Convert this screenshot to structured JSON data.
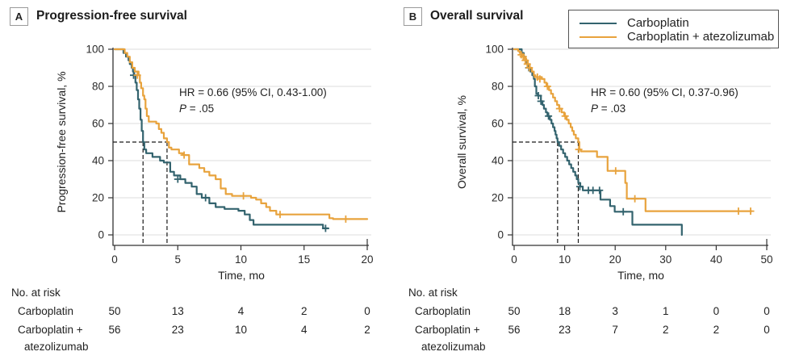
{
  "colors": {
    "carboplatin": "#33636E",
    "atezolizumab": "#E8A33D",
    "grid": "#DCDCDC",
    "axis": "#333333",
    "text": "#222222"
  },
  "legend": {
    "items": [
      {
        "label": "Carboplatin",
        "color_key": "carboplatin"
      },
      {
        "label": "Carboplatin + atezolizumab",
        "color_key": "atezolizumab"
      }
    ]
  },
  "chart_data": [
    {
      "type": "line",
      "subtype": "kaplan-meier-step",
      "panel_letter": "A",
      "title": "Progression-free survival",
      "xlabel": "Time, mo",
      "ylabel": "Progression-free survival, %",
      "xlim": [
        0,
        20
      ],
      "ylim": [
        0,
        100
      ],
      "xticks": [
        0,
        5,
        10,
        15,
        20
      ],
      "yticks": [
        0,
        20,
        40,
        60,
        80,
        100
      ],
      "grid": true,
      "legend_position": "top-right-of-panel-B",
      "annotation": {
        "hr": "HR = 0.66 (95% CI, 0.43-1.00)",
        "p_italic": "P",
        "p_rest": " = .05"
      },
      "median_lines": {
        "y": 50,
        "x_values": [
          2.25,
          4.15
        ]
      },
      "series": [
        {
          "name": "Carboplatin",
          "color_key": "carboplatin",
          "steps": [
            [
              0,
              100
            ],
            [
              0.7,
              98
            ],
            [
              0.9,
              96
            ],
            [
              1.1,
              94
            ],
            [
              1.2,
              92
            ],
            [
              1.35,
              90
            ],
            [
              1.45,
              88
            ],
            [
              1.55,
              86
            ],
            [
              1.65,
              82
            ],
            [
              1.75,
              78
            ],
            [
              1.85,
              73
            ],
            [
              1.95,
              68
            ],
            [
              2.05,
              62
            ],
            [
              2.15,
              56
            ],
            [
              2.25,
              50
            ],
            [
              2.35,
              46
            ],
            [
              2.5,
              44
            ],
            [
              3.0,
              42
            ],
            [
              3.6,
              40
            ],
            [
              3.9,
              39
            ],
            [
              4.4,
              34
            ],
            [
              4.7,
              32
            ],
            [
              5.2,
              30
            ],
            [
              5.6,
              28
            ],
            [
              6.1,
              26
            ],
            [
              6.5,
              22
            ],
            [
              6.9,
              20
            ],
            [
              7.5,
              17
            ],
            [
              8.0,
              15
            ],
            [
              8.7,
              14
            ],
            [
              9.8,
              13
            ],
            [
              10.3,
              11
            ],
            [
              10.7,
              8
            ],
            [
              11.0,
              5.5
            ],
            [
              16.5,
              3.5
            ],
            [
              16.9,
              3.5
            ]
          ],
          "censors": [
            [
              1.5,
              86
            ],
            [
              5.0,
              30
            ],
            [
              7.2,
              20
            ],
            [
              16.7,
              3.5
            ]
          ]
        },
        {
          "name": "Carboplatin + atezolizumab",
          "color_key": "atezolizumab",
          "steps": [
            [
              0,
              100
            ],
            [
              0.8,
              98
            ],
            [
              1.0,
              96
            ],
            [
              1.2,
              93
            ],
            [
              1.4,
              90
            ],
            [
              1.6,
              88
            ],
            [
              1.9,
              86
            ],
            [
              2.0,
              82
            ],
            [
              2.1,
              79
            ],
            [
              2.25,
              75
            ],
            [
              2.35,
              73
            ],
            [
              2.45,
              68
            ],
            [
              2.55,
              64
            ],
            [
              2.7,
              61
            ],
            [
              3.3,
              60
            ],
            [
              3.5,
              57
            ],
            [
              3.7,
              55
            ],
            [
              3.9,
              52
            ],
            [
              4.15,
              50
            ],
            [
              4.3,
              47
            ],
            [
              4.5,
              46
            ],
            [
              5.1,
              44
            ],
            [
              5.4,
              43
            ],
            [
              5.9,
              38
            ],
            [
              6.7,
              36
            ],
            [
              7.1,
              34
            ],
            [
              7.5,
              32
            ],
            [
              8.0,
              30
            ],
            [
              8.4,
              25
            ],
            [
              8.8,
              22
            ],
            [
              9.3,
              21
            ],
            [
              10.8,
              20
            ],
            [
              11.2,
              19
            ],
            [
              11.6,
              17
            ],
            [
              12.0,
              15
            ],
            [
              12.3,
              13
            ],
            [
              12.8,
              11
            ],
            [
              17.0,
              9
            ],
            [
              17.3,
              8.5
            ],
            [
              20,
              8.5
            ]
          ],
          "censors": [
            [
              1.8,
              86
            ],
            [
              5.5,
              43
            ],
            [
              10.2,
              21
            ],
            [
              13.1,
              11
            ],
            [
              18.3,
              8.5
            ]
          ]
        }
      ],
      "risk_table": {
        "header": "No. at risk",
        "times": [
          0,
          5,
          10,
          15,
          20
        ],
        "rows": [
          {
            "label": [
              "Carboplatin"
            ],
            "counts": [
              50,
              13,
              4,
              2,
              0
            ]
          },
          {
            "label": [
              "Carboplatin +",
              "atezolizumab"
            ],
            "counts": [
              56,
              23,
              10,
              4,
              2
            ]
          }
        ]
      }
    },
    {
      "type": "line",
      "subtype": "kaplan-meier-step",
      "panel_letter": "B",
      "title": "Overall survival",
      "xlabel": "Time, mo",
      "ylabel": "Overall survival, %",
      "xlim": [
        0,
        50
      ],
      "ylim": [
        0,
        100
      ],
      "xticks": [
        0,
        10,
        20,
        30,
        40,
        50
      ],
      "yticks": [
        0,
        20,
        40,
        60,
        80,
        100
      ],
      "grid": true,
      "annotation": {
        "hr": "HR = 0.60 (95% CI, 0.37-0.96)",
        "p_italic": "P",
        "p_rest": " = .03"
      },
      "median_lines": {
        "y": 50,
        "x_values": [
          8.6,
          12.7
        ]
      },
      "series": [
        {
          "name": "Carboplatin",
          "color_key": "carboplatin",
          "steps": [
            [
              0,
              100
            ],
            [
              1.5,
              98
            ],
            [
              1.9,
              96
            ],
            [
              2.2,
              94
            ],
            [
              2.5,
              92
            ],
            [
              2.8,
              90
            ],
            [
              3.2,
              88
            ],
            [
              3.6,
              86
            ],
            [
              3.9,
              84
            ],
            [
              4.1,
              80
            ],
            [
              4.4,
              76
            ],
            [
              4.7,
              75
            ],
            [
              5.3,
              72
            ],
            [
              5.6,
              70
            ],
            [
              5.9,
              68
            ],
            [
              6.3,
              66
            ],
            [
              6.6,
              64
            ],
            [
              7.1,
              62
            ],
            [
              7.4,
              60
            ],
            [
              7.7,
              58
            ],
            [
              8.0,
              56
            ],
            [
              8.2,
              54
            ],
            [
              8.4,
              52
            ],
            [
              8.6,
              50
            ],
            [
              8.9,
              48
            ],
            [
              9.3,
              46
            ],
            [
              9.7,
              44
            ],
            [
              10.1,
              42
            ],
            [
              10.5,
              40
            ],
            [
              10.9,
              38
            ],
            [
              11.3,
              36
            ],
            [
              11.7,
              34
            ],
            [
              12.1,
              32
            ],
            [
              12.4,
              30
            ],
            [
              12.7,
              28
            ],
            [
              13.1,
              26
            ],
            [
              13.6,
              24
            ],
            [
              17.1,
              19
            ],
            [
              19.0,
              15.5
            ],
            [
              19.9,
              12.5
            ],
            [
              23.4,
              5.5
            ],
            [
              33.2,
              0
            ]
          ],
          "censors": [
            [
              2.9,
              90
            ],
            [
              4.8,
              75
            ],
            [
              5.3,
              72
            ],
            [
              6.8,
              64
            ],
            [
              13.0,
              26
            ],
            [
              14.7,
              24
            ],
            [
              15.6,
              24
            ],
            [
              16.9,
              24
            ],
            [
              21.6,
              12.5
            ]
          ]
        },
        {
          "name": "Carboplatin + atezolizumab",
          "color_key": "atezolizumab",
          "steps": [
            [
              0,
              100
            ],
            [
              0.8,
              99
            ],
            [
              1.1,
              98
            ],
            [
              1.4,
              97
            ],
            [
              1.7,
              96
            ],
            [
              2.0,
              95
            ],
            [
              2.4,
              94
            ],
            [
              2.7,
              92
            ],
            [
              3.1,
              90
            ],
            [
              3.5,
              88
            ],
            [
              3.9,
              86
            ],
            [
              4.2,
              85
            ],
            [
              5.5,
              84
            ],
            [
              6.0,
              82
            ],
            [
              6.4,
              80
            ],
            [
              6.9,
              78
            ],
            [
              7.3,
              76
            ],
            [
              7.7,
              74
            ],
            [
              8.1,
              72
            ],
            [
              8.5,
              70
            ],
            [
              8.9,
              68
            ],
            [
              9.4,
              66
            ],
            [
              9.9,
              64
            ],
            [
              10.4,
              62
            ],
            [
              10.8,
              60
            ],
            [
              11.2,
              58
            ],
            [
              11.5,
              56
            ],
            [
              11.8,
              54
            ],
            [
              12.2,
              52
            ],
            [
              12.7,
              50
            ],
            [
              12.9,
              46
            ],
            [
              13.2,
              45
            ],
            [
              16.4,
              42
            ],
            [
              18.5,
              34.5
            ],
            [
              22.0,
              28
            ],
            [
              22.3,
              19.5
            ],
            [
              26.0,
              12.8
            ],
            [
              47.0,
              12.8
            ]
          ],
          "censors": [
            [
              1.4,
              97
            ],
            [
              1.8,
              96
            ],
            [
              2.2,
              94
            ],
            [
              2.6,
              92
            ],
            [
              3.0,
              90
            ],
            [
              4.6,
              85
            ],
            [
              5.1,
              84
            ],
            [
              6.6,
              80
            ],
            [
              9.0,
              68
            ],
            [
              10.1,
              64
            ],
            [
              12.8,
              46
            ],
            [
              20.1,
              34.5
            ],
            [
              23.9,
              19.5
            ],
            [
              44.4,
              12.8
            ],
            [
              46.8,
              12.8
            ]
          ]
        }
      ],
      "risk_table": {
        "header": "No. at risk",
        "times": [
          0,
          10,
          20,
          30,
          40,
          50
        ],
        "rows": [
          {
            "label": [
              "Carboplatin"
            ],
            "counts": [
              50,
              18,
              3,
              1,
              0,
              0
            ]
          },
          {
            "label": [
              "Carboplatin +",
              "atezolizumab"
            ],
            "counts": [
              56,
              23,
              7,
              2,
              2,
              0
            ]
          }
        ]
      }
    }
  ]
}
